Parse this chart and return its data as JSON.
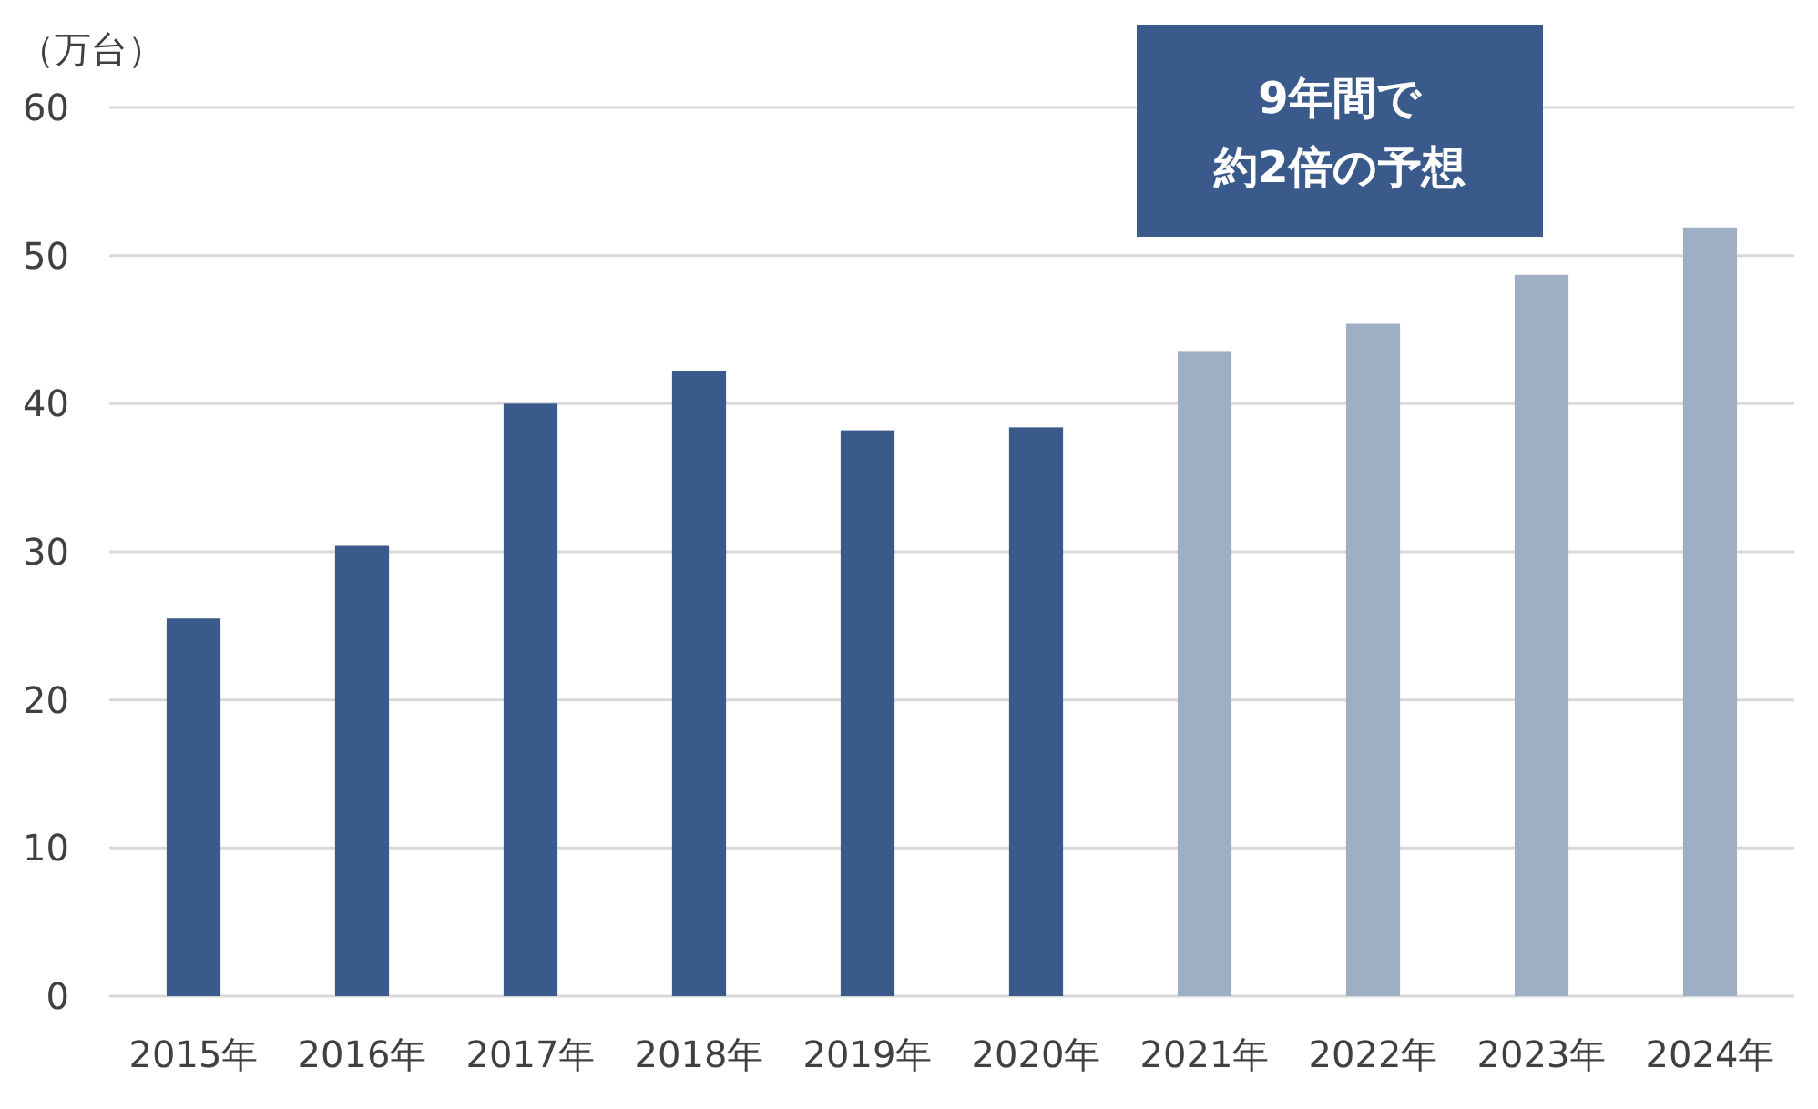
{
  "chart_data": {
    "type": "bar",
    "ylabel": "（万台）",
    "categories": [
      "2015年",
      "2016年",
      "2017年",
      "2018年",
      "2019年",
      "2020年",
      "2021年",
      "2022年",
      "2023年",
      "2024年"
    ],
    "values": [
      25.5,
      30.4,
      40.0,
      42.2,
      38.2,
      38.4,
      43.5,
      45.4,
      48.7,
      51.9
    ],
    "colors": [
      "#3a5a8c",
      "#3a5a8c",
      "#3a5a8c",
      "#3a5a8c",
      "#3a5a8c",
      "#3a5a8c",
      "#9eaec4",
      "#9eaec4",
      "#9eaec4",
      "#9eaec4"
    ],
    "ylim": [
      0,
      60
    ],
    "yticks": [
      0,
      10,
      20,
      30,
      40,
      50,
      60
    ],
    "grid": "y",
    "annotations": [
      "9年間で",
      "約2倍の予想"
    ]
  }
}
